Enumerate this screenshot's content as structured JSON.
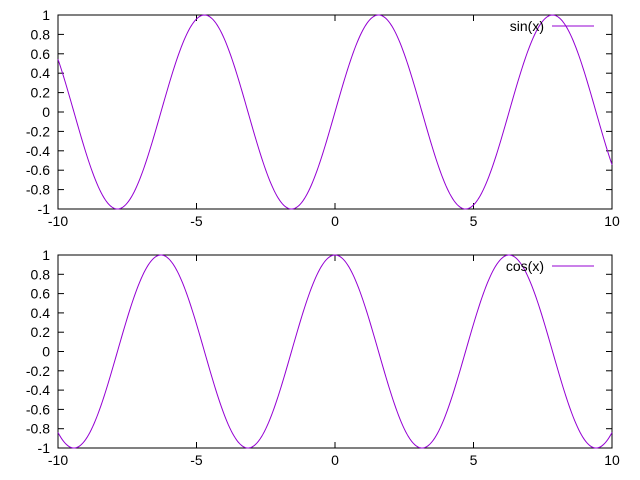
{
  "colors": {
    "series": "#9400d3",
    "axis": "#000000",
    "background": "#ffffff"
  },
  "chart_data": [
    {
      "type": "line",
      "function": "sin",
      "xlim": [
        -10,
        10
      ],
      "ylim": [
        -1,
        1
      ],
      "x_ticks": [
        -10,
        -5,
        0,
        5,
        10
      ],
      "x_tick_labels": [
        "-10",
        "-5",
        "0",
        "5",
        "10"
      ],
      "y_ticks": [
        1,
        0.8,
        0.6,
        0.4,
        0.2,
        0,
        -0.2,
        -0.4,
        -0.6,
        -0.8,
        -1
      ],
      "y_tick_labels": [
        "1",
        "0.8",
        "0.6",
        "0.4",
        "0.2",
        "0",
        "-0.2",
        "-0.4",
        "-0.6",
        "-0.8",
        "-1"
      ],
      "grid": false,
      "legend_position": "top-right",
      "series": [
        {
          "name": "sin(x)",
          "x": [
            -10,
            -9.5,
            -9,
            -8.5,
            -8,
            -7.5,
            -7,
            -6.5,
            -6,
            -5.5,
            -5,
            -4.5,
            -4,
            -3.5,
            -3,
            -2.5,
            -2,
            -1.5,
            -1,
            -0.5,
            0,
            0.5,
            1,
            1.5,
            2,
            2.5,
            3,
            3.5,
            4,
            4.5,
            5,
            5.5,
            6,
            6.5,
            7,
            7.5,
            8,
            8.5,
            9,
            9.5,
            10
          ],
          "y": [
            0.544,
            0.075,
            -0.412,
            -0.798,
            -0.989,
            -0.938,
            -0.657,
            -0.215,
            0.279,
            0.706,
            0.959,
            0.978,
            0.757,
            0.351,
            -0.141,
            -0.598,
            -0.909,
            -0.997,
            -0.841,
            -0.479,
            0,
            0.479,
            0.841,
            0.997,
            0.909,
            0.598,
            0.141,
            -0.351,
            -0.757,
            -0.978,
            -0.959,
            -0.706,
            -0.279,
            0.215,
            0.657,
            0.938,
            0.989,
            0.798,
            0.412,
            -0.075,
            -0.544
          ]
        }
      ]
    },
    {
      "type": "line",
      "function": "cos",
      "xlim": [
        -10,
        10
      ],
      "ylim": [
        -1,
        1
      ],
      "x_ticks": [
        -10,
        -5,
        0,
        5,
        10
      ],
      "x_tick_labels": [
        "-10",
        "-5",
        "0",
        "5",
        "10"
      ],
      "y_ticks": [
        1,
        0.8,
        0.6,
        0.4,
        0.2,
        0,
        -0.2,
        -0.4,
        -0.6,
        -0.8,
        -1
      ],
      "y_tick_labels": [
        "1",
        "0.8",
        "0.6",
        "0.4",
        "0.2",
        "0",
        "-0.2",
        "-0.4",
        "-0.6",
        "-0.8",
        "-1"
      ],
      "grid": false,
      "legend_position": "top-right",
      "series": [
        {
          "name": "cos(x)",
          "x": [
            -10,
            -9.5,
            -9,
            -8.5,
            -8,
            -7.5,
            -7,
            -6.5,
            -6,
            -5.5,
            -5,
            -4.5,
            -4,
            -3.5,
            -3,
            -2.5,
            -2,
            -1.5,
            -1,
            -0.5,
            0,
            0.5,
            1,
            1.5,
            2,
            2.5,
            3,
            3.5,
            4,
            4.5,
            5,
            5.5,
            6,
            6.5,
            7,
            7.5,
            8,
            8.5,
            9,
            9.5,
            10
          ],
          "y": [
            -0.839,
            -0.997,
            -0.911,
            -0.602,
            -0.146,
            0.347,
            0.754,
            0.977,
            0.96,
            0.709,
            0.284,
            -0.211,
            -0.654,
            -0.936,
            -0.99,
            -0.801,
            -0.416,
            0.071,
            0.54,
            0.878,
            1,
            0.878,
            0.54,
            0.071,
            -0.416,
            -0.801,
            -0.99,
            -0.936,
            -0.654,
            -0.211,
            0.284,
            0.709,
            0.96,
            0.977,
            0.754,
            0.347,
            -0.146,
            -0.602,
            -0.911,
            -0.997,
            -0.839
          ]
        }
      ]
    }
  ]
}
